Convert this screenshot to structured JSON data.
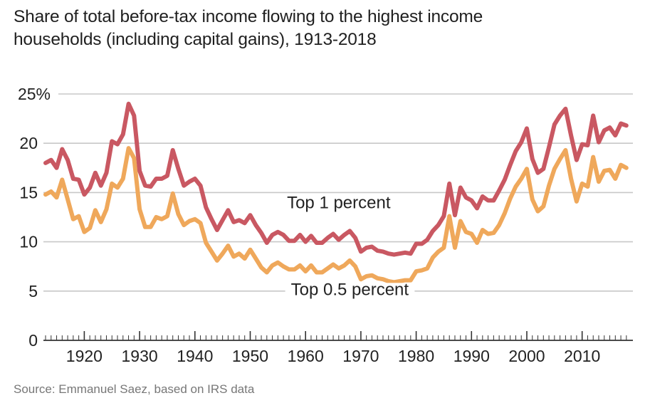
{
  "chart_data": {
    "type": "line",
    "title": "Share of total before-tax income flowing to the highest income households (including capital gains), 1913-2018",
    "title_lines": [
      "Share of total before-tax income flowing to the highest income",
      "households (including capital gains), 1913-2018"
    ],
    "source": "Source: Emmanuel Saez, based on IRS data",
    "xlabel": "",
    "ylabel": "",
    "xlim": [
      1913,
      2018
    ],
    "ylim": [
      0,
      25
    ],
    "grid": true,
    "y_ticks": [
      0,
      5,
      10,
      15,
      20,
      25
    ],
    "y_tick_labels": [
      "0",
      "5",
      "10",
      "15",
      "20",
      "25%"
    ],
    "x_ticks": [
      1920,
      1930,
      1940,
      1950,
      1960,
      1970,
      1980,
      1990,
      2000,
      2010
    ],
    "x_tick_labels": [
      "1920",
      "1930",
      "1940",
      "1950",
      "1960",
      "1970",
      "1980",
      "1990",
      "2000",
      "2010"
    ],
    "x_start": 1913,
    "series": [
      {
        "name": "Top 1 percent",
        "color": "#C95862",
        "values": [
          18.0,
          18.3,
          17.5,
          19.4,
          18.3,
          16.4,
          16.3,
          14.8,
          15.5,
          17.0,
          15.7,
          17.0,
          20.2,
          19.9,
          20.9,
          24.0,
          22.8,
          17.2,
          15.7,
          15.6,
          16.4,
          16.4,
          16.7,
          19.3,
          17.4,
          15.7,
          16.1,
          16.4,
          15.7,
          13.5,
          12.3,
          11.2,
          12.2,
          13.2,
          12.0,
          12.2,
          11.9,
          12.7,
          11.7,
          10.9,
          9.9,
          10.7,
          11.0,
          10.7,
          10.1,
          10.1,
          10.7,
          10.0,
          10.6,
          9.9,
          9.9,
          10.4,
          10.8,
          10.2,
          10.7,
          11.1,
          10.4,
          9.0,
          9.4,
          9.5,
          9.1,
          9.0,
          8.8,
          8.7,
          8.8,
          8.9,
          8.8,
          9.8,
          9.8,
          10.2,
          11.1,
          11.7,
          12.6,
          15.9,
          12.7,
          15.5,
          14.5,
          14.2,
          13.4,
          14.6,
          14.2,
          14.2,
          15.2,
          16.3,
          17.8,
          19.2,
          20.1,
          21.5,
          18.4,
          17.0,
          17.4,
          19.6,
          21.9,
          22.8,
          23.5,
          20.8,
          18.3,
          19.9,
          19.8,
          22.8,
          20.1,
          21.3,
          21.6,
          20.8,
          22.0,
          21.8
        ]
      },
      {
        "name": "Top 0.5 percent",
        "color": "#EFA85B",
        "values": [
          14.8,
          15.1,
          14.5,
          16.3,
          14.3,
          12.3,
          12.6,
          11.0,
          11.4,
          13.2,
          12.0,
          13.3,
          15.9,
          15.5,
          16.4,
          19.5,
          18.5,
          13.3,
          11.5,
          11.5,
          12.5,
          12.3,
          12.6,
          14.9,
          12.8,
          11.7,
          12.1,
          12.3,
          11.9,
          9.9,
          9.0,
          8.1,
          8.8,
          9.6,
          8.5,
          8.8,
          8.3,
          9.2,
          8.3,
          7.4,
          6.9,
          7.6,
          7.9,
          7.5,
          7.2,
          7.2,
          7.6,
          7.0,
          7.6,
          6.9,
          6.9,
          7.3,
          7.7,
          7.3,
          7.6,
          8.1,
          7.5,
          6.2,
          6.5,
          6.6,
          6.3,
          6.2,
          6.0,
          5.9,
          6.0,
          6.1,
          6.1,
          7.0,
          7.1,
          7.3,
          8.4,
          9.0,
          9.4,
          12.6,
          9.4,
          12.1,
          11.0,
          10.8,
          9.9,
          11.2,
          10.8,
          10.9,
          11.7,
          12.9,
          14.4,
          15.6,
          16.4,
          17.4,
          14.3,
          13.1,
          13.6,
          15.7,
          17.4,
          18.4,
          19.3,
          16.4,
          14.1,
          15.9,
          15.6,
          18.6,
          16.1,
          17.2,
          17.3,
          16.4,
          17.8,
          17.5
        ]
      }
    ],
    "annotations": [
      {
        "text": "Top 1 percent",
        "series": "Top 1 percent",
        "x": 1966,
        "y": 13.4
      },
      {
        "text": "Top 0.5 percent",
        "series": "Top 0.5 percent",
        "x": 1968,
        "y": 4.6
      }
    ],
    "legend": "inline-labels"
  },
  "colors": {
    "gridline": "#c8c8c8",
    "axis": "#333333",
    "text": "#1f1f1f",
    "source_text": "#777777"
  }
}
